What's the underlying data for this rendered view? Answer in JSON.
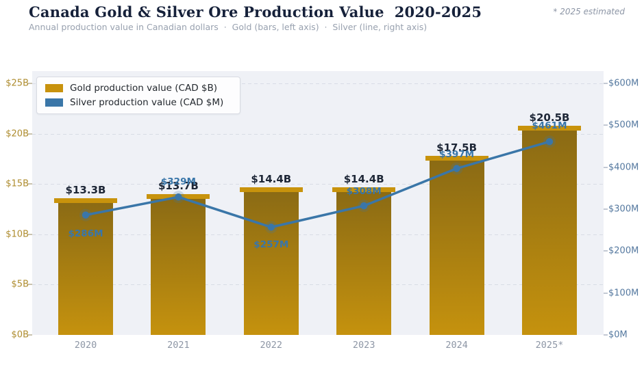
{
  "header": {
    "title": "Canada Gold & Silver Ore Production Value  2020-2025",
    "subtitle": "Annual production value in Canadian dollars  ·  Gold (bars, left axis)  ·  Silver (line, right axis)",
    "note": "* 2025 estimated"
  },
  "legend": {
    "items": [
      {
        "label": "Gold production value (CAD $B)",
        "color": "#c8920d"
      },
      {
        "label": "Silver production value (CAD $M)",
        "color": "#3a76a8"
      }
    ]
  },
  "chart_data": {
    "type": "combo",
    "subtypes": [
      "bar",
      "line"
    ],
    "title": "Canada Gold & Silver Ore Production Value 2020-2025",
    "categories": [
      "2020",
      "2021",
      "2022",
      "2023",
      "2024",
      "2025*"
    ],
    "series": [
      {
        "name": "Gold production value (CAD $B)",
        "chart": "bar",
        "axis": "left",
        "unit": "CAD $B",
        "values": [
          13.3,
          13.7,
          14.4,
          14.4,
          17.5,
          20.5
        ],
        "point_labels": [
          "$13.3B",
          "$13.7B",
          "$14.4B",
          "$14.4B",
          "$17.5B",
          "$20.5B"
        ],
        "color": "#c8920d",
        "bar_gradient_top": "#8a6a14",
        "bar_gradient_bottom": "#c5920e",
        "cap_color": "#c8930c"
      },
      {
        "name": "Silver production value (CAD $M)",
        "chart": "line",
        "axis": "right",
        "unit": "CAD $M",
        "values": [
          286,
          329,
          257,
          308,
          397,
          461
        ],
        "point_labels": [
          "$286M",
          "$329M",
          "$257M",
          "$308M",
          "$397M",
          "$461M"
        ],
        "color": "#3a76a8"
      }
    ],
    "left_axis": {
      "range": [
        0,
        25
      ],
      "tick_step": 5,
      "tick_labels": [
        "$0B",
        "$5B",
        "$10B",
        "$15B",
        "$20B",
        "$25B"
      ],
      "color": "#ae8c2e"
    },
    "right_axis": {
      "range": [
        0,
        600
      ],
      "tick_step": 100,
      "tick_labels": [
        "$0M",
        "$100M",
        "$200M",
        "$300M",
        "$400M",
        "$500M",
        "$600M"
      ],
      "color": "#54789f"
    },
    "grid": "dashed horizontal lines at left-axis ticks",
    "legend_position": "top-left",
    "plot_background": "#eff1f6"
  }
}
